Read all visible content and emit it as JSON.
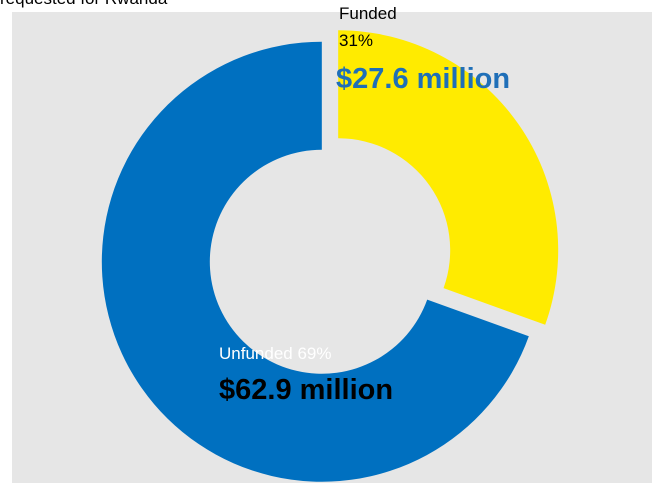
{
  "caption": "requested for Rwanda",
  "colors": {
    "background": "#e6e6e6",
    "funded": "#ffeb00",
    "unfunded": "#0070c0",
    "funded_amount_text": "#1f6fb8",
    "unfunded_category_text": "#ffffff",
    "unfunded_amount_text": "#000000",
    "funded_text": "#000000"
  },
  "chart_data": {
    "type": "pie",
    "variant": "donut",
    "title": "",
    "legend": "none",
    "slices": [
      {
        "category": "Funded",
        "percent_label": "31%",
        "amount_label": "$27.6 million",
        "value": 27.6
      },
      {
        "category": "Unfunded",
        "percent_label": "69%",
        "amount_label": "$62.9 million",
        "value": 62.9
      }
    ]
  }
}
